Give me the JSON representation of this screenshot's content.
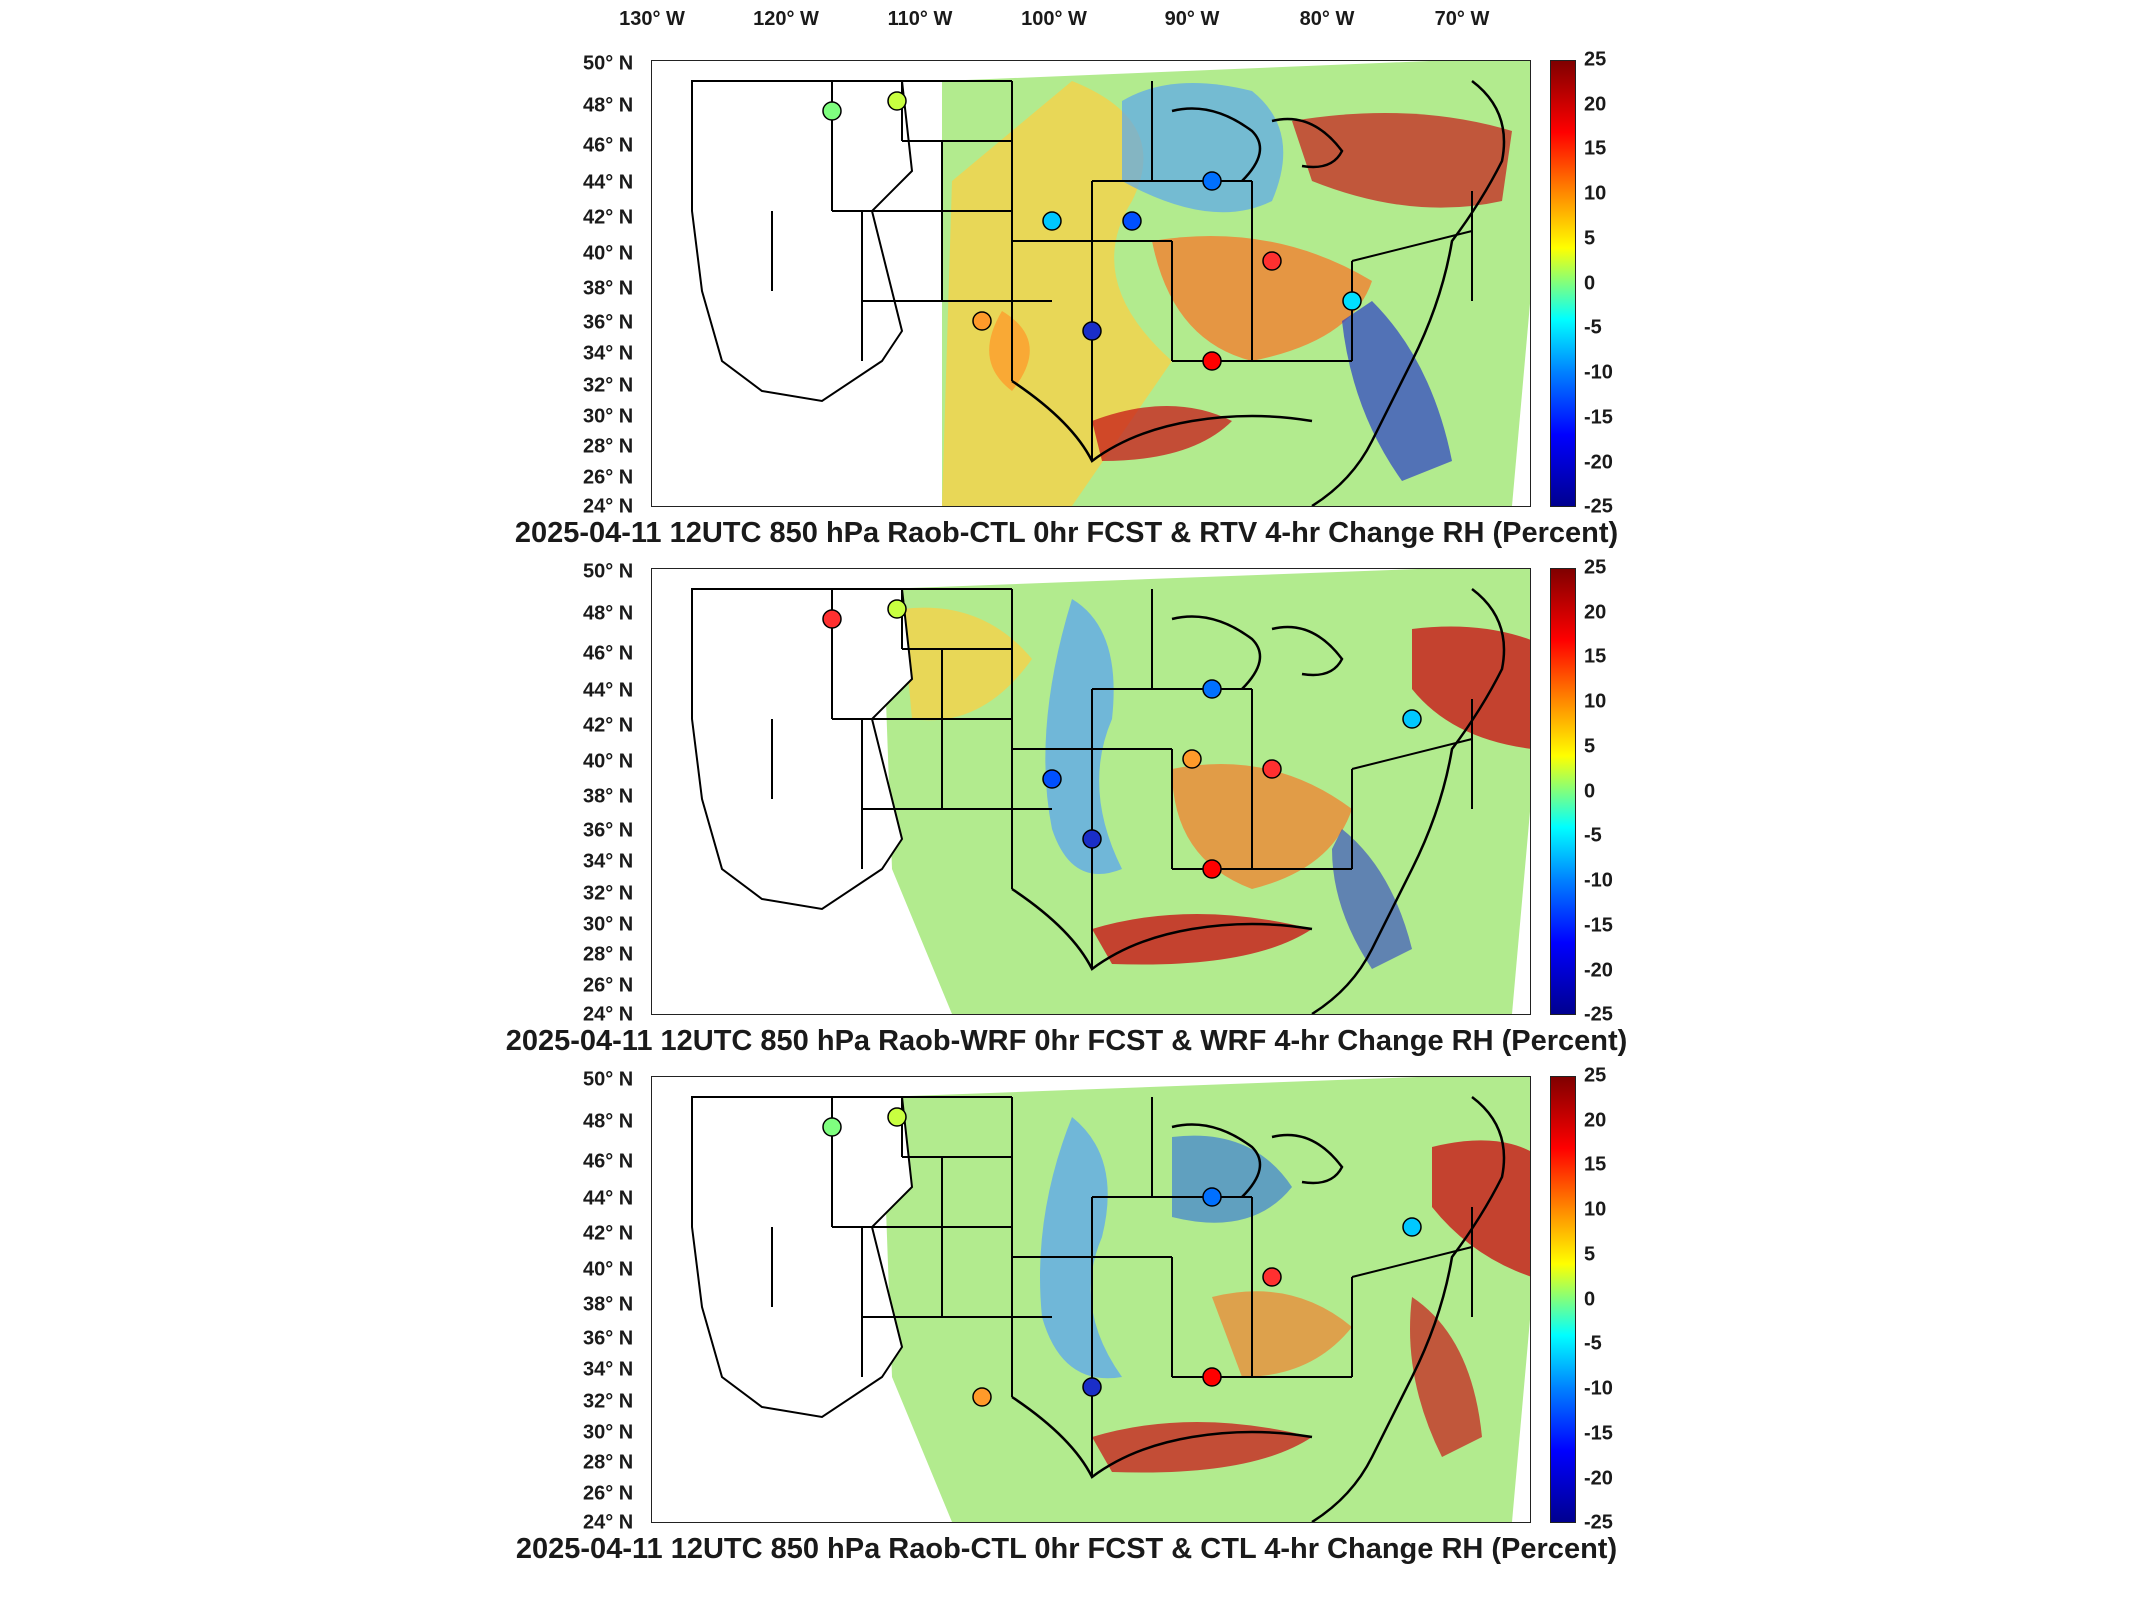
{
  "longitude_labels": [
    "130° W",
    "120° W",
    "110° W",
    "100° W",
    "90° W",
    "80° W",
    "70° W"
  ],
  "latitude_labels": [
    "50° N",
    "48° N",
    "46° N",
    "44° N",
    "42° N",
    "40° N",
    "38° N",
    "36° N",
    "34° N",
    "32° N",
    "30° N",
    "28° N",
    "26° N",
    "24° N"
  ],
  "colorbar_ticks": [
    "25",
    "20",
    "15",
    "10",
    "5",
    "0",
    "-5",
    "-10",
    "-15",
    "-20",
    "-25"
  ],
  "colors": {
    "max": "#800000",
    "mid_high": "#ff0000",
    "warm": "#ff8c00",
    "yellow": "#ffff00",
    "zero": "#7fff7f",
    "cyan": "#00ffff",
    "blue": "#0080ff",
    "deep_blue": "#0000ff",
    "min": "#00008f"
  },
  "panels": [
    {
      "title": "2025-04-11 12UTC 850 hPa Raob-CTL 0hr FCST & RTV 4-hr Change RH (Percent)"
    },
    {
      "title": "2025-04-11 12UTC 850 hPa Raob-WRF 0hr FCST & WRF 4-hr Change RH (Percent)"
    },
    {
      "title": "2025-04-11 12UTC 850 hPa Raob-CTL 0hr FCST & CTL 4-hr Change RH (Percent)"
    }
  ]
}
